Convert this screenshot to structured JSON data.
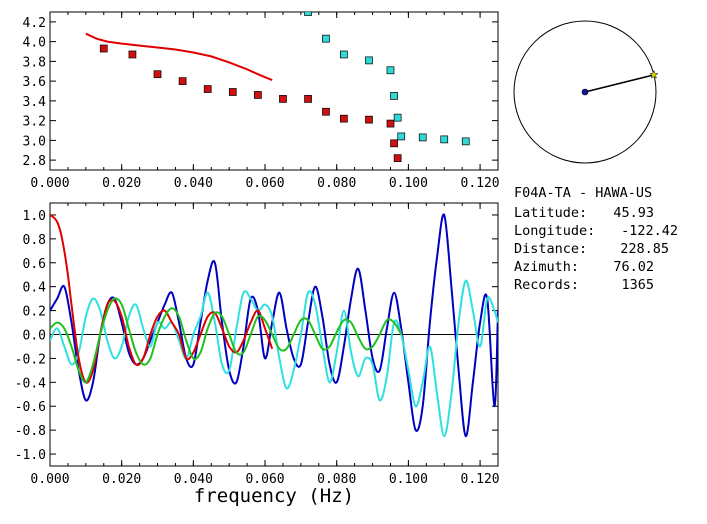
{
  "info": {
    "station": "F04A-TA - HAWA-US",
    "rows": [
      {
        "label": "Latitude:",
        "value": "45.93"
      },
      {
        "label": "Longitude:",
        "value": "-122.42"
      },
      {
        "label": "Distance:",
        "value": "228.85"
      },
      {
        "label": "Azimuth:",
        "value": "76.02"
      },
      {
        "label": "Records:",
        "value": "1365"
      }
    ]
  },
  "colors": {
    "red": "#e00000",
    "blue": "#0000c0",
    "cyan": "#30e0e0",
    "green": "#20c020",
    "marker_red": "#d01010",
    "marker_cyan": "#30d8d8",
    "axis": "#000000"
  },
  "chart_data": [
    {
      "type": "scatter",
      "title": "",
      "xlabel": "",
      "ylabel": "",
      "xlim": [
        0.0,
        0.125
      ],
      "ylim": [
        2.7,
        4.3
      ],
      "x_ticks": [
        "0.000",
        "0.020",
        "0.040",
        "0.060",
        "0.080",
        "0.100",
        "0.120"
      ],
      "y_ticks": [
        "2.8",
        "3.0",
        "3.2",
        "3.4",
        "3.6",
        "3.8",
        "4.0",
        "4.2"
      ],
      "series": [
        {
          "kind": "line",
          "color": "red",
          "x": [
            0.01,
            0.013,
            0.016,
            0.02,
            0.025,
            0.03,
            0.035,
            0.04,
            0.045,
            0.05,
            0.055,
            0.058,
            0.06,
            0.062
          ],
          "y": [
            4.08,
            4.03,
            4.0,
            3.98,
            3.96,
            3.94,
            3.92,
            3.89,
            3.85,
            3.79,
            3.72,
            3.67,
            3.64,
            3.61
          ]
        },
        {
          "kind": "markers",
          "color": "marker_red",
          "x": [
            0.015,
            0.023,
            0.03,
            0.037,
            0.044,
            0.051,
            0.058,
            0.065,
            0.072,
            0.077,
            0.082,
            0.089,
            0.095,
            0.096,
            0.097
          ],
          "y": [
            3.93,
            3.87,
            3.67,
            3.6,
            3.52,
            3.49,
            3.46,
            3.42,
            3.42,
            3.29,
            3.22,
            3.21,
            3.17,
            2.97,
            2.82
          ]
        },
        {
          "kind": "markers",
          "color": "marker_cyan",
          "x": [
            0.072,
            0.077,
            0.082,
            0.089,
            0.095,
            0.096,
            0.097,
            0.098,
            0.104,
            0.11,
            0.116
          ],
          "y": [
            4.3,
            4.03,
            3.87,
            3.81,
            3.71,
            3.45,
            3.23,
            3.04,
            3.03,
            3.01,
            2.99
          ]
        }
      ]
    },
    {
      "type": "line",
      "title": "",
      "xlabel": "frequency (Hz)",
      "ylabel": "",
      "xlim": [
        0.0,
        0.125
      ],
      "ylim": [
        -1.1,
        1.1
      ],
      "x_ticks": [
        "0.000",
        "0.020",
        "0.040",
        "0.060",
        "0.080",
        "0.100",
        "0.120"
      ],
      "y_ticks": [
        "-1.0",
        "-0.8",
        "-0.6",
        "-0.4",
        "-0.2",
        "0.0",
        "0.2",
        "0.4",
        "0.6",
        "0.8",
        "1.0"
      ],
      "series": [
        {
          "color": "blue",
          "x": [
            0.0,
            0.002,
            0.004,
            0.006,
            0.008,
            0.01,
            0.012,
            0.014,
            0.016,
            0.018,
            0.02,
            0.022,
            0.024,
            0.026,
            0.028,
            0.03,
            0.032,
            0.034,
            0.036,
            0.038,
            0.04,
            0.042,
            0.044,
            0.046,
            0.048,
            0.05,
            0.052,
            0.054,
            0.056,
            0.058,
            0.06,
            0.062,
            0.064,
            0.066,
            0.068,
            0.07,
            0.072,
            0.074,
            0.076,
            0.078,
            0.08,
            0.082,
            0.084,
            0.086,
            0.088,
            0.09,
            0.092,
            0.094,
            0.096,
            0.098,
            0.1,
            0.102,
            0.104,
            0.106,
            0.108,
            0.11,
            0.112,
            0.114,
            0.116,
            0.118,
            0.12,
            0.122,
            0.124,
            0.125
          ],
          "y": [
            0.2,
            0.3,
            0.4,
            0.1,
            -0.3,
            -0.55,
            -0.4,
            0.0,
            0.25,
            0.3,
            0.1,
            -0.15,
            -0.25,
            -0.2,
            -0.05,
            0.1,
            0.25,
            0.35,
            0.1,
            -0.2,
            -0.25,
            0.1,
            0.45,
            0.6,
            0.1,
            -0.3,
            -0.4,
            -0.1,
            0.3,
            0.2,
            -0.2,
            0.1,
            0.35,
            0.05,
            -0.2,
            -0.25,
            0.1,
            0.4,
            0.15,
            -0.25,
            -0.4,
            -0.1,
            0.3,
            0.55,
            0.2,
            -0.2,
            -0.3,
            0.05,
            0.35,
            0.05,
            -0.4,
            -0.8,
            -0.6,
            0.1,
            0.65,
            1.0,
            0.4,
            -0.3,
            -0.85,
            -0.4,
            0.1,
            0.3,
            -0.6,
            0.2
          ]
        },
        {
          "color": "cyan",
          "x": [
            0.0,
            0.002,
            0.004,
            0.006,
            0.008,
            0.01,
            0.012,
            0.014,
            0.016,
            0.018,
            0.02,
            0.022,
            0.024,
            0.026,
            0.028,
            0.03,
            0.032,
            0.034,
            0.036,
            0.038,
            0.04,
            0.042,
            0.044,
            0.046,
            0.048,
            0.05,
            0.052,
            0.054,
            0.056,
            0.058,
            0.06,
            0.062,
            0.064,
            0.066,
            0.068,
            0.07,
            0.072,
            0.074,
            0.076,
            0.078,
            0.08,
            0.082,
            0.084,
            0.086,
            0.088,
            0.09,
            0.092,
            0.094,
            0.096,
            0.098,
            0.1,
            0.102,
            0.104,
            0.106,
            0.108,
            0.11,
            0.112,
            0.114,
            0.116,
            0.118,
            0.12,
            0.122,
            0.124,
            0.125
          ],
          "y": [
            -0.05,
            0.05,
            -0.1,
            -0.25,
            -0.15,
            0.15,
            0.3,
            0.2,
            -0.05,
            -0.2,
            -0.1,
            0.15,
            0.25,
            0.05,
            -0.1,
            0.1,
            0.05,
            0.1,
            -0.05,
            -0.2,
            0.0,
            0.15,
            0.35,
            0.1,
            -0.25,
            -0.3,
            0.05,
            0.35,
            0.3,
            0.2,
            0.25,
            0.15,
            -0.2,
            -0.45,
            -0.3,
            0.0,
            0.35,
            0.25,
            -0.1,
            -0.4,
            -0.15,
            0.2,
            -0.15,
            -0.35,
            -0.2,
            -0.25,
            -0.55,
            -0.35,
            0.1,
            0.0,
            -0.3,
            -0.6,
            -0.4,
            -0.1,
            -0.5,
            -0.85,
            -0.5,
            0.1,
            0.45,
            0.2,
            -0.1,
            0.3,
            0.2,
            0.1
          ]
        },
        {
          "color": "red",
          "x": [
            0.0,
            0.001,
            0.002,
            0.003,
            0.004,
            0.005,
            0.006,
            0.008,
            0.01,
            0.012,
            0.014,
            0.016,
            0.018,
            0.02,
            0.022,
            0.024,
            0.026,
            0.028,
            0.03,
            0.032,
            0.034,
            0.036,
            0.038,
            0.04,
            0.042,
            0.044,
            0.046,
            0.048,
            0.05,
            0.052,
            0.054,
            0.056,
            0.058,
            0.06,
            0.062
          ],
          "y": [
            1.0,
            0.98,
            0.94,
            0.85,
            0.7,
            0.5,
            0.25,
            -0.2,
            -0.4,
            -0.3,
            0.0,
            0.25,
            0.28,
            0.15,
            -0.1,
            -0.25,
            -0.2,
            0.0,
            0.15,
            0.2,
            0.1,
            0.0,
            -0.2,
            -0.15,
            0.0,
            0.15,
            0.18,
            0.05,
            -0.1,
            -0.15,
            -0.05,
            0.1,
            0.2,
            0.05,
            -0.12
          ]
        },
        {
          "color": "green",
          "x": [
            0.0,
            0.002,
            0.004,
            0.006,
            0.008,
            0.01,
            0.012,
            0.014,
            0.016,
            0.018,
            0.02,
            0.022,
            0.024,
            0.026,
            0.028,
            0.03,
            0.032,
            0.034,
            0.036,
            0.038,
            0.04,
            0.042,
            0.044,
            0.046,
            0.048,
            0.05,
            0.052,
            0.054,
            0.056,
            0.058,
            0.06,
            0.062,
            0.064,
            0.066,
            0.068,
            0.07,
            0.072,
            0.074,
            0.076,
            0.078,
            0.08,
            0.082,
            0.084,
            0.086,
            0.088,
            0.09,
            0.092,
            0.094,
            0.096,
            0.098
          ],
          "y": [
            0.05,
            0.1,
            0.05,
            -0.1,
            -0.3,
            -0.4,
            -0.25,
            0.0,
            0.2,
            0.3,
            0.25,
            0.05,
            -0.15,
            -0.25,
            -0.2,
            0.0,
            0.15,
            0.22,
            0.15,
            -0.05,
            -0.2,
            -0.15,
            0.05,
            0.18,
            0.15,
            0.0,
            -0.15,
            -0.15,
            0.0,
            0.15,
            0.12,
            0.0,
            -0.12,
            -0.12,
            0.0,
            0.12,
            0.12,
            0.0,
            -0.12,
            -0.1,
            0.02,
            0.12,
            0.1,
            -0.02,
            -0.12,
            -0.1,
            0.0,
            0.12,
            0.1,
            0.0
          ]
        }
      ]
    },
    {
      "type": "polar",
      "title": "",
      "azimuth_deg": 76.02,
      "marker_colors": {
        "center": "#1010a0",
        "tip": "#e0e000"
      }
    }
  ]
}
